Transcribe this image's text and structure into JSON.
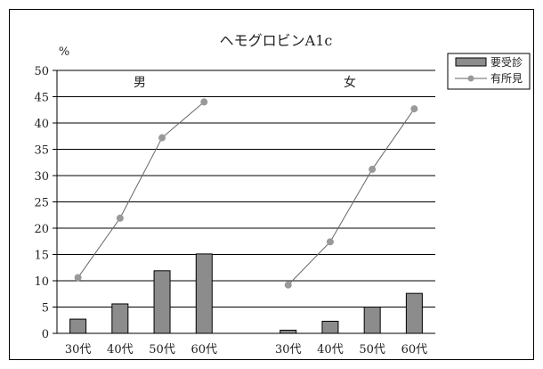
{
  "chart_data": {
    "type": "bar",
    "title": "ヘモグロビンA1c",
    "ylabel": "%",
    "ylim": [
      0,
      50
    ],
    "yticks": [
      0,
      5,
      10,
      15,
      20,
      25,
      30,
      35,
      40,
      45,
      50
    ],
    "grid": true,
    "legend_position": "top-right",
    "groups": [
      {
        "label": "男",
        "categories": [
          "30代",
          "40代",
          "50代",
          "60代"
        ]
      },
      {
        "label": "女",
        "categories": [
          "30代",
          "40代",
          "50代",
          "60代"
        ]
      }
    ],
    "series": [
      {
        "name": "要受診",
        "type": "bar",
        "color": "#8c8c8c",
        "values": [
          [
            2.7,
            5.6,
            11.9,
            15.1
          ],
          [
            0.6,
            2.3,
            5.0,
            7.6
          ]
        ]
      },
      {
        "name": "有所見",
        "type": "line",
        "color": "#999999",
        "values": [
          [
            10.6,
            21.9,
            37.2,
            44.0
          ],
          [
            9.2,
            17.4,
            31.2,
            42.7
          ]
        ]
      }
    ]
  }
}
